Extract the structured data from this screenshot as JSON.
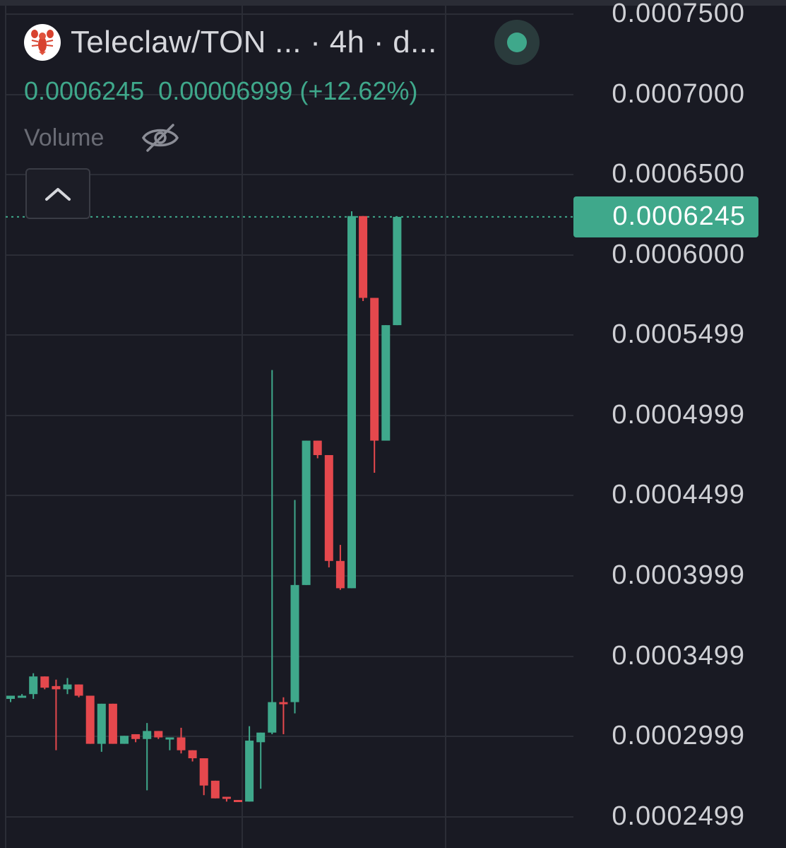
{
  "header": {
    "pair_title": "Teleclaw/TON ...",
    "interval_text": " · 4h · d...",
    "ohlc_text": "0.0006245  0.00006999 (+12.62%)",
    "volume_label": "Volume"
  },
  "icons": {
    "logo": "lobster-icon",
    "live": "live-status-dot",
    "visibility": "eye-off-icon",
    "collapse": "chevron-up-icon"
  },
  "colors": {
    "up": "#3fa88b",
    "down": "#e5484d",
    "background": "#191a23",
    "grid": "#2b2d36"
  },
  "price_axis": {
    "ticks": [
      "0.0007500",
      "0.0007000",
      "0.0006500",
      "0.0006000",
      "0.0005499",
      "0.0004999",
      "0.0004499",
      "0.0003999",
      "0.0003499",
      "0.0002999",
      "0.0002499"
    ],
    "current_price_label": "0.0006245"
  },
  "chart_data": {
    "type": "candlestick",
    "title": "Teleclaw/TON",
    "interval": "4h",
    "ylim": [
      0.00023,
      0.00076
    ],
    "last_price": 0.0006245,
    "change": 6.999e-05,
    "change_pct": 12.62,
    "candles": [
      {
        "open": 0.000324,
        "high": 0.000326,
        "low": 0.000322,
        "close": 0.000326
      },
      {
        "open": 0.000326,
        "high": 0.000327,
        "low": 0.000325,
        "close": 0.000326
      },
      {
        "open": 0.000327,
        "high": 0.00034,
        "low": 0.000324,
        "close": 0.000338
      },
      {
        "open": 0.000338,
        "high": 0.000338,
        "low": 0.00033,
        "close": 0.000331
      },
      {
        "open": 0.000332,
        "high": 0.000336,
        "low": 0.000292,
        "close": 0.00033
      },
      {
        "open": 0.00033,
        "high": 0.000337,
        "low": 0.000327,
        "close": 0.000333
      },
      {
        "open": 0.000333,
        "high": 0.000333,
        "low": 0.000325,
        "close": 0.000326
      },
      {
        "open": 0.000326,
        "high": 0.000326,
        "low": 0.000296,
        "close": 0.000296
      },
      {
        "open": 0.000296,
        "high": 0.000321,
        "low": 0.000291,
        "close": 0.000321
      },
      {
        "open": 0.000321,
        "high": 0.000321,
        "low": 0.000296,
        "close": 0.000296
      },
      {
        "open": 0.000296,
        "high": 0.000301,
        "low": 0.000296,
        "close": 0.000301
      },
      {
        "open": 0.000302,
        "high": 0.000302,
        "low": 0.000297,
        "close": 0.000299
      },
      {
        "open": 0.000299,
        "high": 0.000309,
        "low": 0.000267,
        "close": 0.000304
      },
      {
        "open": 0.000304,
        "high": 0.000304,
        "low": 0.000299,
        "close": 0.0003
      },
      {
        "open": 0.0003,
        "high": 0.0003,
        "low": 0.000292,
        "close": 0.0003
      },
      {
        "open": 0.0003,
        "high": 0.000306,
        "low": 0.00029,
        "close": 0.000292
      },
      {
        "open": 0.000292,
        "high": 0.000292,
        "low": 0.000285,
        "close": 0.000287
      },
      {
        "open": 0.000287,
        "high": 0.000287,
        "low": 0.000264,
        "close": 0.00027
      },
      {
        "open": 0.000273,
        "high": 0.000273,
        "low": 0.000262,
        "close": 0.000262
      },
      {
        "open": 0.000263,
        "high": 0.000263,
        "low": 0.00026,
        "close": 0.000262
      },
      {
        "open": 0.000261,
        "high": 0.000261,
        "low": 0.00026,
        "close": 0.00026
      },
      {
        "open": 0.00026,
        "high": 0.000307,
        "low": 0.00026,
        "close": 0.000298
      },
      {
        "open": 0.000297,
        "high": 0.000303,
        "low": 0.000268,
        "close": 0.000303
      },
      {
        "open": 0.000303,
        "high": 0.000529,
        "low": 0.000302,
        "close": 0.000322
      },
      {
        "open": 0.000322,
        "high": 0.000325,
        "low": 0.000302,
        "close": 0.000321
      },
      {
        "open": 0.000322,
        "high": 0.000448,
        "low": 0.000315,
        "close": 0.000395
      },
      {
        "open": 0.000395,
        "high": 0.000485,
        "low": 0.000395,
        "close": 0.000485
      },
      {
        "open": 0.000485,
        "high": 0.000485,
        "low": 0.000474,
        "close": 0.000476
      },
      {
        "open": 0.000476,
        "high": 0.000476,
        "low": 0.000406,
        "close": 0.00041
      },
      {
        "open": 0.00041,
        "high": 0.00042,
        "low": 0.000392,
        "close": 0.000393
      },
      {
        "open": 0.000393,
        "high": 0.000628,
        "low": 0.000393,
        "close": 0.000625
      },
      {
        "open": 0.000625,
        "high": 0.000625,
        "low": 0.000572,
        "close": 0.000574
      },
      {
        "open": 0.000574,
        "high": 0.000574,
        "low": 0.000465,
        "close": 0.000485
      },
      {
        "open": 0.000485,
        "high": 0.000557,
        "low": 0.000485,
        "close": 0.000557
      },
      {
        "open": 0.000557,
        "high": 0.0006245,
        "low": 0.000557,
        "close": 0.0006245
      }
    ]
  }
}
